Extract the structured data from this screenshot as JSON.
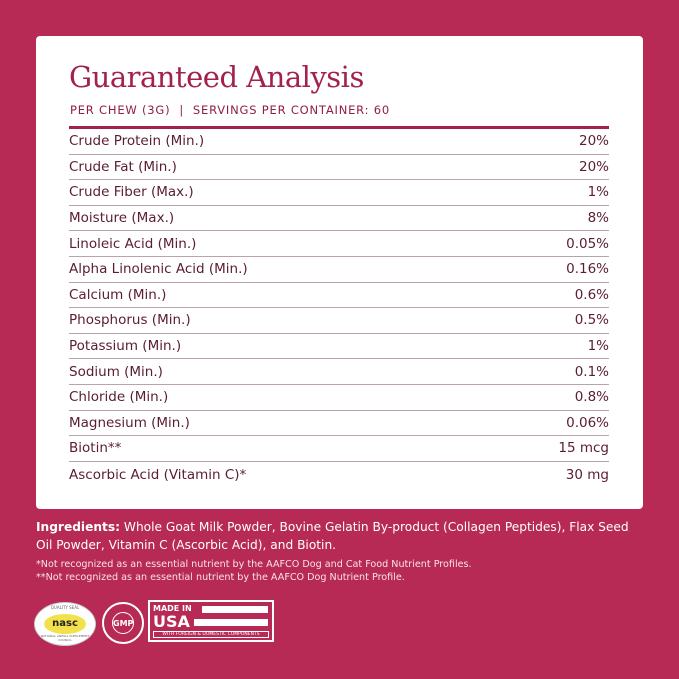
{
  "header": {
    "title": "Guaranteed Analysis",
    "subtitle": "PER CHEW (3G)  |  SERVINGS PER CONTAINER: 60"
  },
  "rows": [
    {
      "label": "Crude Protein (Min.)",
      "value": "20%"
    },
    {
      "label": "Crude Fat (Min.)",
      "value": "20%"
    },
    {
      "label": "Crude Fiber (Max.)",
      "value": "1%"
    },
    {
      "label": "Moisture (Max.)",
      "value": "8%"
    },
    {
      "label": "Linoleic Acid (Min.)",
      "value": "0.05%"
    },
    {
      "label": "Alpha Linolenic Acid (Min.)",
      "value": "0.16%"
    },
    {
      "label": "Calcium (Min.)",
      "value": "0.6%"
    },
    {
      "label": "Phosphorus (Min.)",
      "value": "0.5%"
    },
    {
      "label": "Potassium (Min.)",
      "value": "1%"
    },
    {
      "label": "Sodium (Min.)",
      "value": "0.1%"
    },
    {
      "label": "Chloride (Min.)",
      "value": "0.8%"
    },
    {
      "label": "Magnesium (Min.)",
      "value": "0.06%"
    },
    {
      "label": "Biotin**",
      "value": "15 mcg"
    },
    {
      "label": "Ascorbic Acid (Vitamin C)*",
      "value": "30 mg"
    }
  ],
  "ingredients": {
    "label": "Ingredients:",
    "text": " Whole Goat Milk Powder, Bovine Gelatin By-product (Collagen Peptides), Flax Seed Oil Powder, Vitamin C (Ascorbic Acid), and Biotin."
  },
  "footnotes": [
    "*Not recognized as an essential nutrient by the AAFCO Dog and Cat Food Nutrient Profiles.",
    "**Not recognized as an essential nutrient by the AAFCO Dog Nutrient Profile."
  ],
  "badges": {
    "nasc": {
      "top": "QUALITY SEAL",
      "main": "nasc",
      "bottom": "NATIONAL ANIMAL SUPPLEMENT COUNCIL"
    },
    "gmp": {
      "main": "GMP"
    },
    "usa": {
      "line1": "MADE IN",
      "line2": "USA",
      "line3": "WITH FOREIGN & DOMESTIC COMPONENTS"
    }
  },
  "colors": {
    "background": "#b72a55",
    "accent": "#a3224c",
    "text": "#5b1c34"
  }
}
